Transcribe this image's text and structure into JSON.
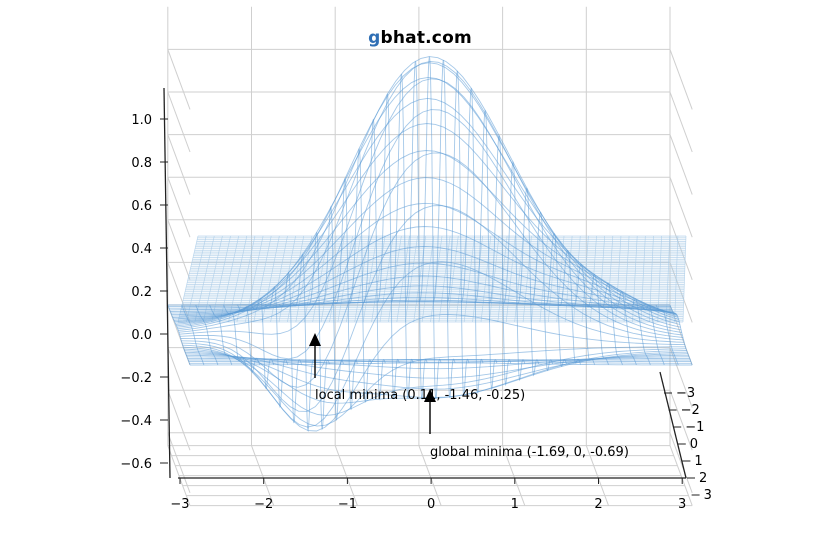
{
  "watermark": {
    "first": "g",
    "rest": "bhat.com"
  },
  "chart_data": {
    "type": "surface3d",
    "title": "",
    "x_ticks": [
      "−3",
      "−2",
      "−1",
      "0",
      "1",
      "2",
      "3"
    ],
    "z_ticks": [
      "−0.6",
      "−0.4",
      "−0.2",
      "0.0",
      "0.2",
      "0.4",
      "0.6",
      "0.8",
      "1.0"
    ],
    "y_ticks": [
      "−3",
      "−2",
      "−1",
      "0",
      "1",
      "2",
      "3"
    ],
    "xlim": [
      -3,
      3
    ],
    "ylim": [
      -3,
      3
    ],
    "zlim": [
      -0.6,
      1.0
    ],
    "surface_color": "#5b9bd5",
    "plane_color": "#a9cbe8",
    "plane_z": 0,
    "annotations": [
      {
        "label": "local minima (0.11, -1.46, -0.25)",
        "x": -1.4,
        "z": -0.25
      },
      {
        "label": "global minima (-1.69, 0, -0.69)",
        "x": 0,
        "z": -0.69
      }
    ]
  }
}
